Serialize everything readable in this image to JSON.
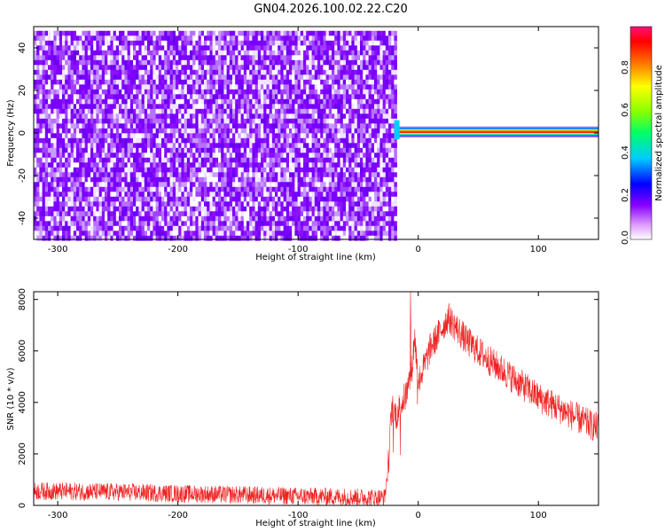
{
  "title": "GN04.2026.100.02.22.C20",
  "chart_data": [
    {
      "type": "heatmap",
      "name": "spectrogram",
      "xlabel": "Height of straight line (km)",
      "ylabel": "Frequency (Hz)",
      "xlim": [
        -320,
        150
      ],
      "ylim": [
        -50,
        50
      ],
      "xticks": [
        -300,
        -200,
        -100,
        0,
        100
      ],
      "yticks": [
        -40,
        -20,
        0,
        20,
        40
      ],
      "noise_region": {
        "x_start": -320,
        "x_end": -20,
        "freq_min": -50,
        "freq_max": 48,
        "amplitude": 0.15
      },
      "signal_band": {
        "x_start": -20,
        "x_end": 150,
        "freq_center": 0.5,
        "freq_halfwidth": 3,
        "peak_amplitude": 1.0
      },
      "colorbar": {
        "label": "Normalized spectral amplitude",
        "range": [
          0,
          1
        ],
        "ticks": [
          "0.0",
          "0.2",
          "0.4",
          "0.6",
          "0.8"
        ]
      }
    },
    {
      "type": "line",
      "name": "snr",
      "xlabel": "Height of straight line (km)",
      "ylabel": "SNR (10 * v/v)",
      "xlim": [
        -320,
        150
      ],
      "ylim": [
        0,
        8300
      ],
      "xticks": [
        -300,
        -200,
        -100,
        0,
        100
      ],
      "yticks": [
        0,
        2000,
        4000,
        6000,
        8000
      ],
      "color": "#ee2222",
      "envelope": {
        "x": [
          -320,
          -300,
          -250,
          -200,
          -150,
          -100,
          -50,
          -28,
          -25,
          -22,
          -18,
          -15,
          -10,
          -5,
          -3,
          0,
          5,
          10,
          20,
          25,
          30,
          40,
          60,
          80,
          100,
          120,
          140,
          150
        ],
        "y": [
          550,
          550,
          520,
          460,
          410,
          360,
          320,
          300,
          1500,
          3800,
          3500,
          3900,
          4300,
          5400,
          6600,
          4800,
          5400,
          6100,
          6900,
          7300,
          7000,
          6400,
          5600,
          4900,
          4200,
          3700,
          3200,
          3000
        ]
      },
      "noise_amplitude": [
        350,
        600
      ]
    }
  ]
}
